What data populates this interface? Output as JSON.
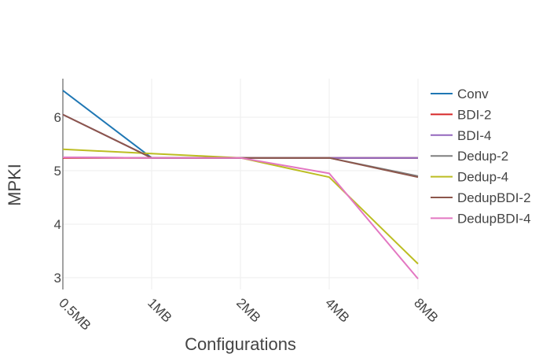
{
  "chart_data": {
    "type": "line",
    "xlabel": "Configurations",
    "ylabel": "MPKI",
    "categories": [
      "0.5MB",
      "1MB",
      "2MB",
      "4MB",
      "8MB"
    ],
    "ylim": [
      2.78,
      6.72
    ],
    "yticks": [
      3,
      4,
      5,
      6
    ],
    "grid": true,
    "legend_position": "right",
    "series": [
      {
        "name": "Conv",
        "color": "#1f77b4",
        "values": [
          6.5,
          5.24,
          5.24,
          5.24,
          5.24
        ]
      },
      {
        "name": "BDI-2",
        "color": "#d62728",
        "values": [
          5.24,
          5.24,
          5.24,
          5.24,
          5.24
        ]
      },
      {
        "name": "BDI-4",
        "color": "#9467bd",
        "values": [
          6.05,
          5.24,
          5.24,
          5.24,
          5.24
        ]
      },
      {
        "name": "Dedup-2",
        "color": "#7f7f7f",
        "values": [
          5.25,
          5.24,
          5.24,
          5.24,
          4.9
        ]
      },
      {
        "name": "Dedup-4",
        "color": "#bcbd22",
        "values": [
          5.4,
          5.32,
          5.24,
          4.88,
          3.26
        ]
      },
      {
        "name": "DedupBDI-2",
        "color": "#8c564b",
        "values": [
          6.05,
          5.24,
          5.24,
          5.24,
          4.88
        ]
      },
      {
        "name": "DedupBDI-4",
        "color": "#e377c2",
        "values": [
          5.25,
          5.24,
          5.24,
          4.95,
          2.98
        ]
      }
    ]
  }
}
